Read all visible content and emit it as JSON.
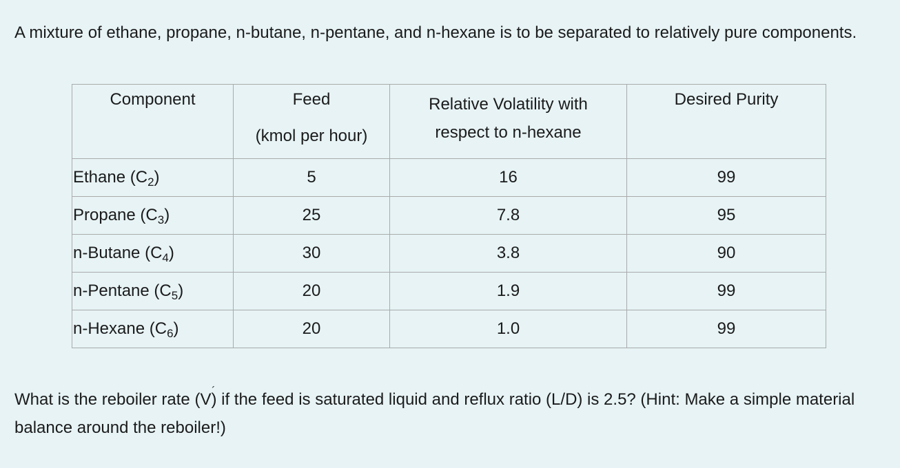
{
  "intro": "A mixture of ethane, propane, n-butane, n-pentane, and n-hexane is to be separated to relatively pure components.",
  "table": {
    "headers": {
      "component": "Component",
      "feed_line1": "Feed",
      "feed_line2": "(kmol per hour)",
      "volatility_line1": "Relative Volatility with",
      "volatility_line2": "respect to n-hexane",
      "purity": "Desired Purity"
    },
    "rows": [
      {
        "name": "Ethane (C",
        "sub": "2",
        "close": ")",
        "feed": "5",
        "volatility": "16",
        "purity": "99"
      },
      {
        "name": "Propane (C",
        "sub": "3",
        "close": ")",
        "feed": "25",
        "volatility": "7.8",
        "purity": "95"
      },
      {
        "name": "n-Butane (C",
        "sub": "4",
        "close": ")",
        "feed": "30",
        "volatility": "3.8",
        "purity": "90"
      },
      {
        "name": "n-Pentane (C",
        "sub": "5",
        "close": ")",
        "feed": "20",
        "volatility": "1.9",
        "purity": "99"
      },
      {
        "name": "n-Hexane (C",
        "sub": "6",
        "close": ")",
        "feed": "20",
        "volatility": "1.0",
        "purity": "99"
      }
    ]
  },
  "question": {
    "before": "What is the reboiler rate (",
    "symbol": "V",
    "prime": "´",
    "after": ") if the feed is saturated liquid and reflux ratio (L/D) is 2.5? (Hint: Make a simple material balance around the reboiler!)"
  }
}
